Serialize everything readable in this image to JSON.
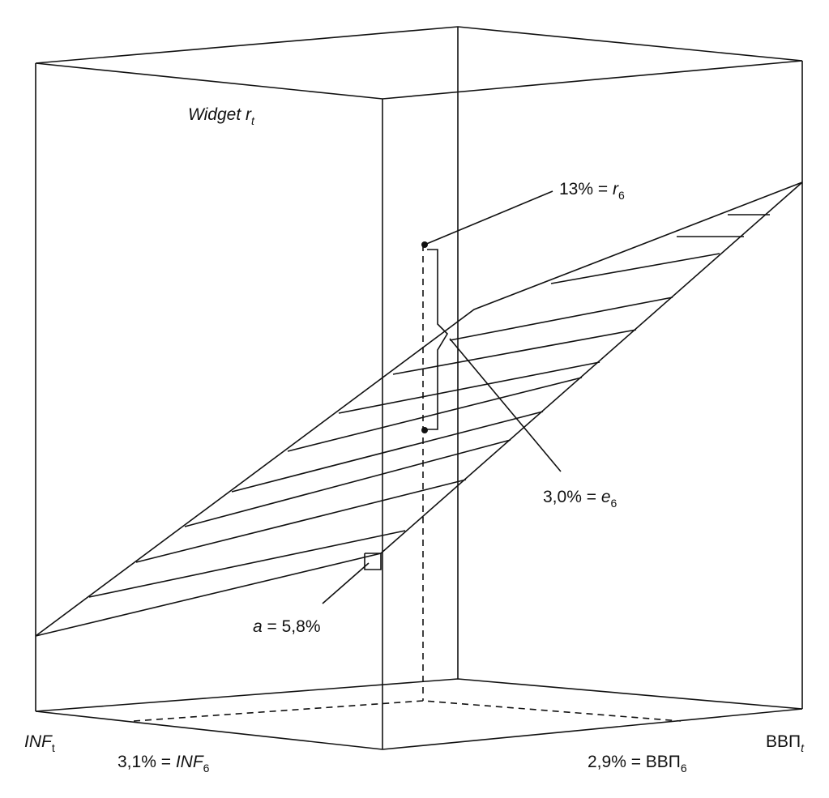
{
  "axis_labels": {
    "vertical": [
      "Widget r",
      "t"
    ],
    "left": [
      "INF",
      "t"
    ],
    "right": [
      "ВВП",
      "t"
    ]
  },
  "annotations": {
    "r6": [
      "13% = ",
      "r",
      "6"
    ],
    "e6": [
      "3,0% = ",
      "e",
      "6"
    ],
    "a": [
      "a",
      " = 5,8%"
    ],
    "inf6": [
      "3,1% = ",
      "INF",
      "6"
    ],
    "gdp6": [
      "2,9% = ВВП",
      "6"
    ]
  }
}
